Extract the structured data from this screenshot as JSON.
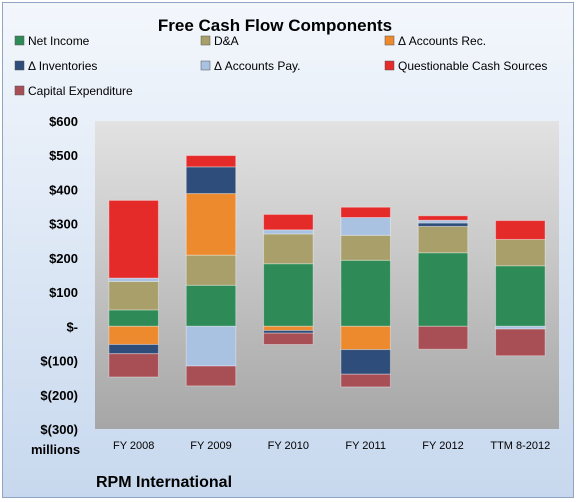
{
  "chart_data": {
    "type": "bar",
    "stacked": true,
    "title": "Free Cash Flow Components",
    "company": "RPM International",
    "unit_label": "millions",
    "categories": [
      "FY 2008",
      "FY 2009",
      "FY 2010",
      "FY 2011",
      "FY 2012",
      "TTM 8-2012"
    ],
    "ylim": [
      -300,
      600
    ],
    "yticks": [
      -300,
      -200,
      -100,
      0,
      100,
      200,
      300,
      400,
      500,
      600
    ],
    "ytick_labels": [
      "$(300)",
      "$(200)",
      "$(100)",
      "$-",
      "$100",
      "$200",
      "$300",
      "$400",
      "$500",
      "$600"
    ],
    "grid": false,
    "legend_position": "top",
    "series": [
      {
        "name": "Net Income",
        "color": "#2e8b57",
        "values": [
          48,
          120,
          183,
          193,
          215,
          177
        ]
      },
      {
        "name": "D&A",
        "color": "#a89f6a",
        "values": [
          83,
          88,
          87,
          73,
          77,
          77
        ]
      },
      {
        "name": "Δ Accounts Rec.",
        "color": "#ed8a2e",
        "values": [
          -53,
          180,
          -12,
          -68,
          0,
          0
        ]
      },
      {
        "name": "Δ Inventories",
        "color": "#2f4d7a",
        "values": [
          -27,
          78,
          -8,
          -72,
          10,
          0
        ]
      },
      {
        "name": "Δ Accounts Pay.",
        "color": "#a9c2e2",
        "values": [
          10,
          -116,
          12,
          52,
          8,
          -8
        ]
      },
      {
        "name": "Questionable Cash Sources",
        "color": "#e52a2a",
        "values": [
          227,
          33,
          45,
          30,
          13,
          55
        ]
      },
      {
        "name": "Capital Expenditure",
        "color": "#a84f56",
        "values": [
          -68,
          -58,
          -33,
          -37,
          -67,
          -78
        ]
      }
    ]
  }
}
